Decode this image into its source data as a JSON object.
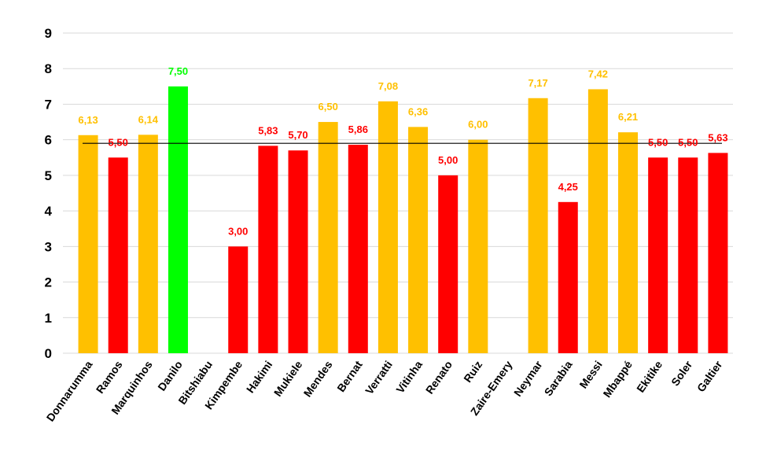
{
  "chart_data": {
    "type": "bar",
    "title": "",
    "xlabel": "",
    "ylabel": "",
    "ylim": [
      0,
      9
    ],
    "yticks": [
      "0",
      "1",
      "2",
      "3",
      "4",
      "5",
      "6",
      "7",
      "8",
      "9"
    ],
    "grid": true,
    "legend": "none",
    "reference_line": 5.9,
    "categories": [
      "Donnarumma",
      "Ramos",
      "Marquinhos",
      "Danilo",
      "Bitshiabu",
      "Kimpembe",
      "Hakimi",
      "Mukiele",
      "Mendes",
      "Bernat",
      "Verratti",
      "Vitinha",
      "Renato",
      "Ruiz",
      "Zaire-Emery",
      "Neymar",
      "Sarabia",
      "Messi",
      "Mbappé",
      "Ekitike",
      "Soler",
      "Galtier"
    ],
    "values": [
      6.13,
      5.5,
      6.14,
      7.5,
      null,
      3.0,
      5.83,
      5.7,
      6.5,
      5.86,
      7.08,
      6.36,
      5.0,
      6.0,
      null,
      7.17,
      4.25,
      7.42,
      6.21,
      5.5,
      5.5,
      5.63
    ],
    "labels": [
      "6,13",
      "5,50",
      "6,14",
      "7,50",
      "",
      "3,00",
      "5,83",
      "5,70",
      "6,50",
      "5,86",
      "7,08",
      "6,36",
      "5,00",
      "6,00",
      "",
      "7,17",
      "4,25",
      "7,42",
      "6,21",
      "5,50",
      "5,50",
      "5,63"
    ],
    "bar_colors": [
      "#ffc000",
      "#ff0000",
      "#ffc000",
      "#00ff00",
      "#ffc000",
      "#ff0000",
      "#ff0000",
      "#ff0000",
      "#ffc000",
      "#ff0000",
      "#ffc000",
      "#ffc000",
      "#ff0000",
      "#ffc000",
      "#ffc000",
      "#ffc000",
      "#ff0000",
      "#ffc000",
      "#ffc000",
      "#ff0000",
      "#ff0000",
      "#ff0000"
    ]
  }
}
